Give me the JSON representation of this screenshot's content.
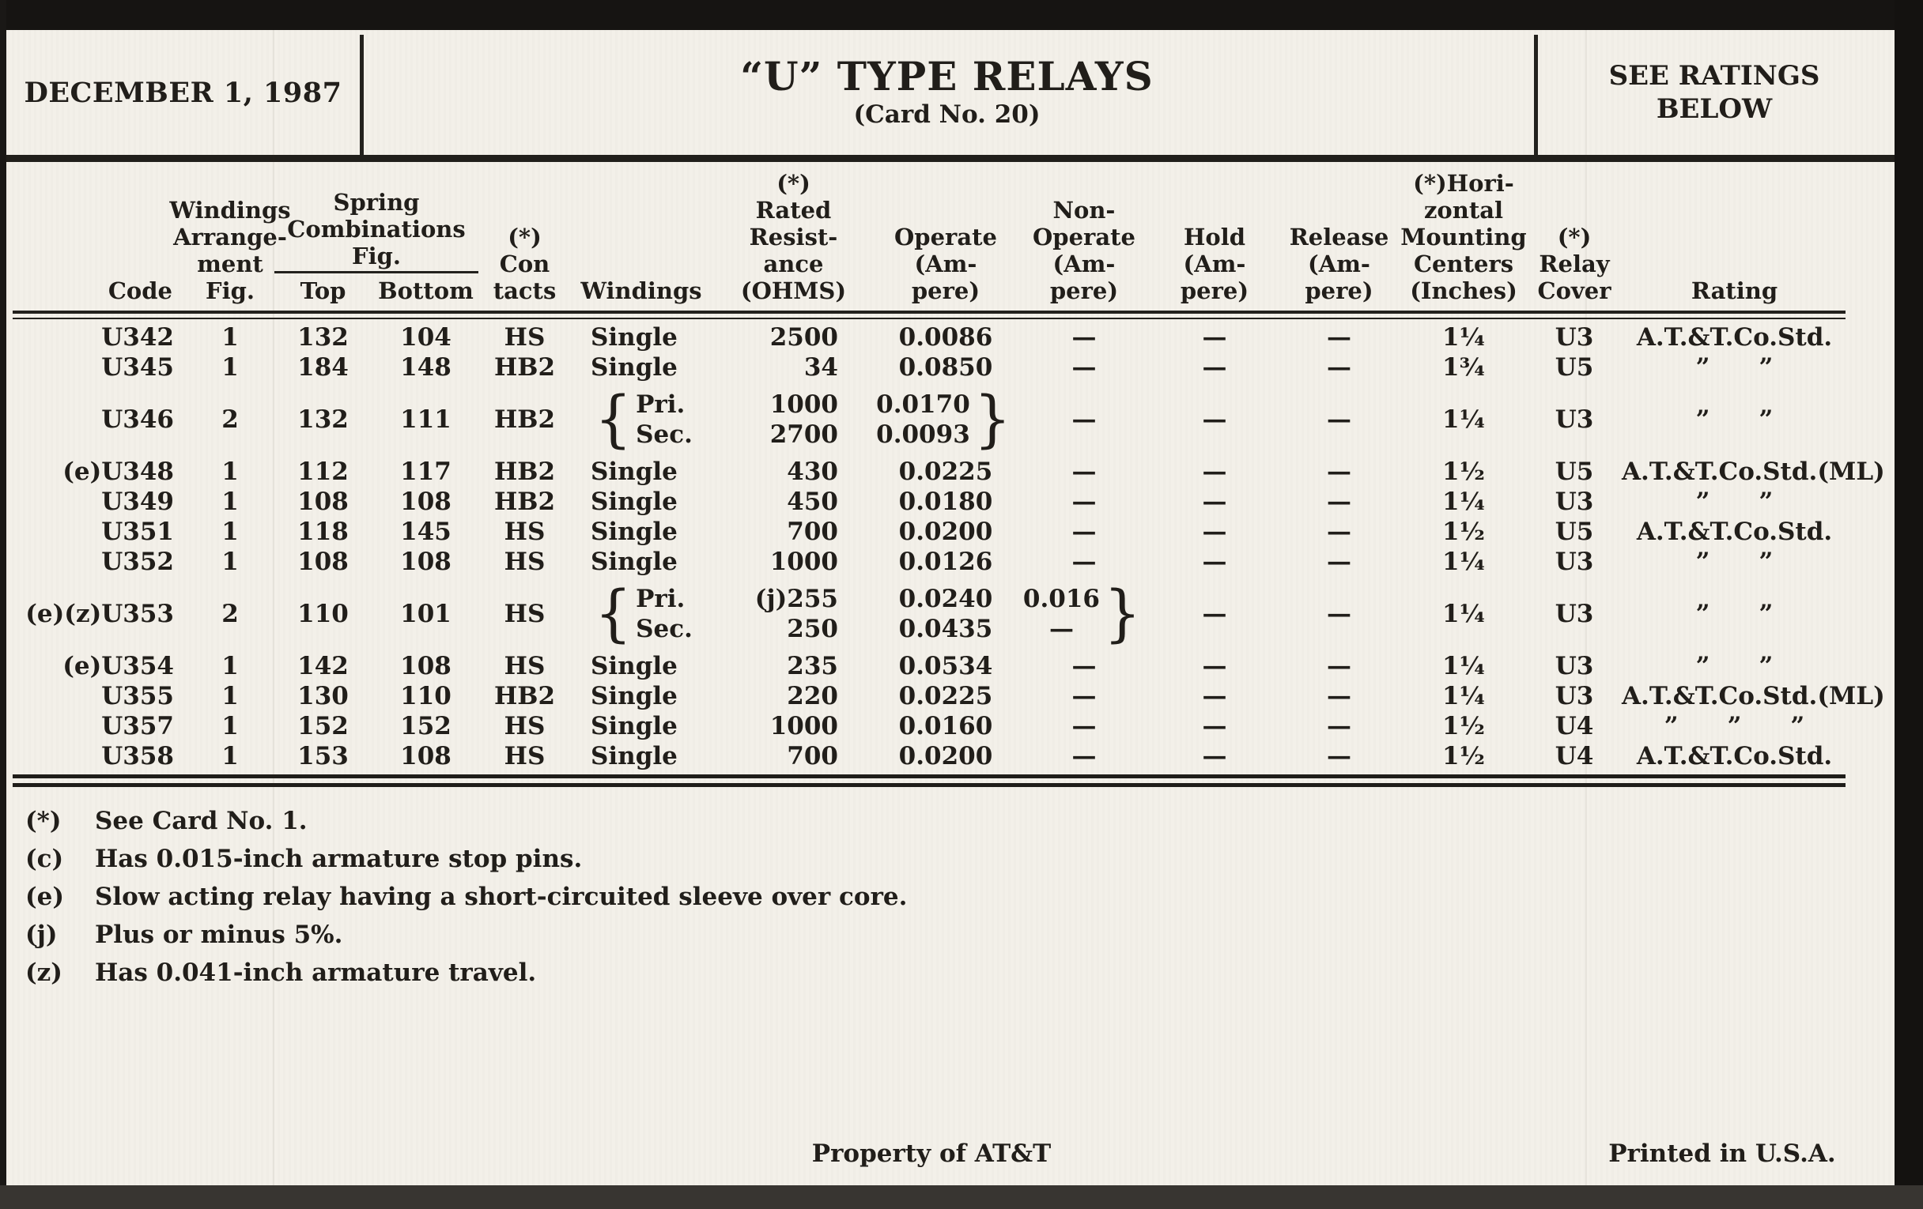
{
  "page": {
    "date": "DECEMBER 1, 1987",
    "title": "“U” TYPE RELAYS",
    "subtitle": "(Card No. 20)",
    "ratings_note": [
      "SEE RATINGS",
      "BELOW"
    ]
  },
  "colors": {
    "paper": "#f3f0e9",
    "ink": "#211e1a",
    "frame": "#161412"
  },
  "table": {
    "headers": {
      "code": "Code",
      "arr": [
        "Windings",
        "Arrange-",
        "ment",
        "Fig."
      ],
      "spring": [
        "Spring",
        "Combinations",
        "Fig."
      ],
      "spring_top": "Top",
      "spring_bottom": "Bottom",
      "contacts": [
        "(*)",
        "Con",
        "tacts"
      ],
      "windings": "Windings",
      "resistance": [
        "(*)",
        "Rated",
        "Resist-",
        "ance",
        "(OHMS)"
      ],
      "operate": [
        "Operate",
        "(Am-",
        "pere)"
      ],
      "non_operate": [
        "Non-",
        "Operate",
        "(Am-",
        "pere)"
      ],
      "hold": [
        "Hold",
        "(Am-",
        "pere)"
      ],
      "release": [
        "Release",
        "(Am-",
        "pere)"
      ],
      "centers": [
        "(*)Hori-",
        "zontal",
        "Mounting",
        "Centers",
        "(Inches)"
      ],
      "cover": [
        "(*)",
        "Relay",
        "Cover"
      ],
      "rating": "Rating"
    },
    "rows": [
      {
        "code": "U342",
        "arr": "1",
        "top": "132",
        "bottom": "104",
        "contacts": "HS",
        "windings": [
          "Single"
        ],
        "resistance": [
          "2500"
        ],
        "operate": [
          "0.0086"
        ],
        "non_operate": [
          "—"
        ],
        "hold": "—",
        "release": "—",
        "centers": "1¼",
        "cover": "U3",
        "rating": "A.T.&T.Co.Std.",
        "brace": ""
      },
      {
        "code": "U345",
        "arr": "1",
        "top": "184",
        "bottom": "148",
        "contacts": "HB2",
        "windings": [
          "Single"
        ],
        "resistance": [
          "34"
        ],
        "operate": [
          "0.0850"
        ],
        "non_operate": [
          "—"
        ],
        "hold": "—",
        "release": "—",
        "centers": "1¾",
        "cover": "U5",
        "rating": "”  ”",
        "brace": ""
      },
      {
        "code": "U346",
        "arr": "2",
        "top": "132",
        "bottom": "111",
        "contacts": "HB2",
        "windings": [
          "Pri.",
          "Sec."
        ],
        "resistance": [
          "1000",
          "2700"
        ],
        "operate": [
          "0.0170",
          "0.0093"
        ],
        "non_operate": [
          "—"
        ],
        "hold": "—",
        "release": "—",
        "centers": "1¼",
        "cover": "U3",
        "rating": "”  ”",
        "brace": "operate"
      },
      {
        "code": "(e)U348",
        "arr": "1",
        "top": "112",
        "bottom": "117",
        "contacts": "HB2",
        "windings": [
          "Single"
        ],
        "resistance": [
          "430"
        ],
        "operate": [
          "0.0225"
        ],
        "non_operate": [
          "—"
        ],
        "hold": "—",
        "release": "—",
        "centers": "1½",
        "cover": "U5",
        "rating": "A.T.&T.Co.Std.(ML)",
        "brace": ""
      },
      {
        "code": "U349",
        "arr": "1",
        "top": "108",
        "bottom": "108",
        "contacts": "HB2",
        "windings": [
          "Single"
        ],
        "resistance": [
          "450"
        ],
        "operate": [
          "0.0180"
        ],
        "non_operate": [
          "—"
        ],
        "hold": "—",
        "release": "—",
        "centers": "1¼",
        "cover": "U3",
        "rating": "”  ”",
        "brace": ""
      },
      {
        "code": "U351",
        "arr": "1",
        "top": "118",
        "bottom": "145",
        "contacts": "HS",
        "windings": [
          "Single"
        ],
        "resistance": [
          "700"
        ],
        "operate": [
          "0.0200"
        ],
        "non_operate": [
          "—"
        ],
        "hold": "—",
        "release": "—",
        "centers": "1½",
        "cover": "U5",
        "rating": "A.T.&T.Co.Std.",
        "brace": ""
      },
      {
        "code": "U352",
        "arr": "1",
        "top": "108",
        "bottom": "108",
        "contacts": "HS",
        "windings": [
          "Single"
        ],
        "resistance": [
          "1000"
        ],
        "operate": [
          "0.0126"
        ],
        "non_operate": [
          "—"
        ],
        "hold": "—",
        "release": "—",
        "centers": "1¼",
        "cover": "U3",
        "rating": "”  ”",
        "brace": ""
      },
      {
        "code": "(e)(z)U353",
        "arr": "2",
        "top": "110",
        "bottom": "101",
        "contacts": "HS",
        "windings": [
          "Pri.",
          "Sec."
        ],
        "resistance": [
          "(j)255",
          "250"
        ],
        "operate": [
          "0.0240",
          "0.0435"
        ],
        "non_operate": [
          "0.016",
          "—"
        ],
        "hold": "—",
        "release": "—",
        "centers": "1¼",
        "cover": "U3",
        "rating": "”  ”",
        "brace": "non_operate"
      },
      {
        "code": "(e)U354",
        "arr": "1",
        "top": "142",
        "bottom": "108",
        "contacts": "HS",
        "windings": [
          "Single"
        ],
        "resistance": [
          "235"
        ],
        "operate": [
          "0.0534"
        ],
        "non_operate": [
          "—"
        ],
        "hold": "—",
        "release": "—",
        "centers": "1¼",
        "cover": "U3",
        "rating": "”  ”",
        "brace": ""
      },
      {
        "code": "U355",
        "arr": "1",
        "top": "130",
        "bottom": "110",
        "contacts": "HB2",
        "windings": [
          "Single"
        ],
        "resistance": [
          "220"
        ],
        "operate": [
          "0.0225"
        ],
        "non_operate": [
          "—"
        ],
        "hold": "—",
        "release": "—",
        "centers": "1¼",
        "cover": "U3",
        "rating": "A.T.&T.Co.Std.(ML)",
        "brace": ""
      },
      {
        "code": "U357",
        "arr": "1",
        "top": "152",
        "bottom": "152",
        "contacts": "HS",
        "windings": [
          "Single"
        ],
        "resistance": [
          "1000"
        ],
        "operate": [
          "0.0160"
        ],
        "non_operate": [
          "—"
        ],
        "hold": "—",
        "release": "—",
        "centers": "1½",
        "cover": "U4",
        "rating": "”  ”  ”",
        "brace": ""
      },
      {
        "code": "U358",
        "arr": "1",
        "top": "153",
        "bottom": "108",
        "contacts": "HS",
        "windings": [
          "Single"
        ],
        "resistance": [
          "700"
        ],
        "operate": [
          "0.0200"
        ],
        "non_operate": [
          "—"
        ],
        "hold": "—",
        "release": "—",
        "centers": "1½",
        "cover": "U4",
        "rating": "A.T.&T.Co.Std.",
        "brace": ""
      }
    ]
  },
  "footnotes": [
    {
      "label": "(*)",
      "text": "See Card No. 1."
    },
    {
      "label": "(c)",
      "text": "Has 0.015-inch armature stop pins."
    },
    {
      "label": "(e)",
      "text": "Slow acting relay having a short-circuited sleeve over core."
    },
    {
      "label": "(j)",
      "text": "Plus or minus 5%."
    },
    {
      "label": "(z)",
      "text": "Has 0.041-inch armature travel."
    }
  ],
  "footer": {
    "left": "Property of AT&T",
    "right": "Printed in U.S.A."
  }
}
